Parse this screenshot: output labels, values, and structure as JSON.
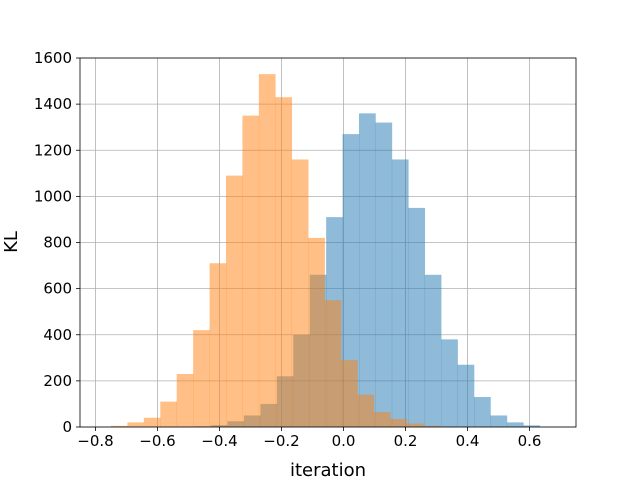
{
  "chart_data": {
    "type": "bar",
    "title": "",
    "xlabel": "iteration",
    "ylabel": "KL",
    "xlim": [
      -0.85,
      0.75
    ],
    "ylim": [
      0,
      1600
    ],
    "grid": true,
    "xticks": [
      -0.8,
      -0.6,
      -0.4,
      -0.2,
      0.0,
      0.2,
      0.4,
      0.6
    ],
    "xtick_labels": [
      "−0.8",
      "−0.6",
      "−0.4",
      "−0.2",
      "0.0",
      "0.2",
      "0.4",
      "0.6"
    ],
    "yticks": [
      0,
      200,
      400,
      600,
      800,
      1000,
      1200,
      1400,
      1600
    ],
    "ytick_labels": [
      "0",
      "200",
      "400",
      "600",
      "800",
      "1000",
      "1200",
      "1400",
      "1600"
    ],
    "series": [
      {
        "color": "#1f77b4",
        "opacity": 0.5,
        "bin_edges": [
          -0.48,
          -0.427,
          -0.374,
          -0.321,
          -0.268,
          -0.215,
          -0.162,
          -0.109,
          -0.056,
          -0.003,
          0.05,
          0.103,
          0.156,
          0.209,
          0.262,
          0.315,
          0.368,
          0.421,
          0.474,
          0.527,
          0.58,
          0.633
        ],
        "counts": [
          3,
          8,
          25,
          50,
          100,
          220,
          400,
          660,
          910,
          1270,
          1360,
          1320,
          1160,
          950,
          660,
          380,
          270,
          130,
          50,
          20,
          7
        ]
      },
      {
        "color": "#ff7f0e",
        "opacity": 0.5,
        "bin_edges": [
          -0.75,
          -0.697,
          -0.644,
          -0.591,
          -0.538,
          -0.485,
          -0.432,
          -0.379,
          -0.326,
          -0.273,
          -0.22,
          -0.167,
          -0.114,
          -0.061,
          -0.008,
          0.045,
          0.098,
          0.151,
          0.204,
          0.257,
          0.31
        ],
        "counts": [
          5,
          20,
          40,
          110,
          230,
          420,
          710,
          1090,
          1350,
          1530,
          1430,
          1160,
          820,
          550,
          290,
          140,
          65,
          35,
          15,
          5
        ]
      }
    ]
  }
}
